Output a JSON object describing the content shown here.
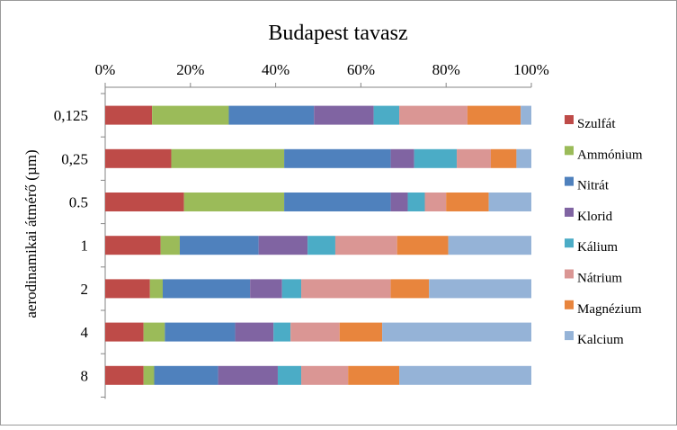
{
  "chart_data": {
    "type": "bar",
    "orientation": "horizontal",
    "stacked": "percent",
    "title": "Budapest tavasz",
    "xlabel": "",
    "ylabel": "aerodinamikai átmérő (µm)",
    "xlim": [
      0,
      100
    ],
    "x_ticks": [
      "0%",
      "20%",
      "40%",
      "60%",
      "80%",
      "100%"
    ],
    "categories": [
      "0,125",
      "0,25",
      "0.5",
      "1",
      "2",
      "4",
      "8"
    ],
    "legend_position": "right",
    "grid": false,
    "series": [
      {
        "name": "Szulfát",
        "color": "#BE4B48",
        "values": [
          11,
          15.5,
          18.5,
          13,
          10.5,
          9,
          9
        ]
      },
      {
        "name": "Ammónium",
        "color": "#9BBB59",
        "values": [
          18,
          26.5,
          23.5,
          4.5,
          3,
          5,
          2.5
        ]
      },
      {
        "name": "Nitrát",
        "color": "#4F81BD",
        "values": [
          20,
          25,
          25,
          18.5,
          20.5,
          16.5,
          15
        ]
      },
      {
        "name": "Klorid",
        "color": "#8064A2",
        "values": [
          14,
          5.5,
          4,
          11.5,
          7.5,
          9,
          14
        ]
      },
      {
        "name": "Kálium",
        "color": "#4BACC6",
        "values": [
          6,
          10,
          4,
          6.5,
          4.5,
          4,
          5.5
        ]
      },
      {
        "name": "Nátrium",
        "color": "#DA9694",
        "values": [
          16,
          8,
          5,
          14.5,
          21,
          11.5,
          11
        ]
      },
      {
        "name": "Magnézium",
        "color": "#E8853D",
        "values": [
          12.5,
          6,
          10,
          12,
          9,
          10,
          12
        ]
      },
      {
        "name": "Kalcium",
        "color": "#95B3D7",
        "values": [
          2.5,
          3.5,
          10,
          19.5,
          24,
          35,
          31
        ]
      }
    ]
  }
}
